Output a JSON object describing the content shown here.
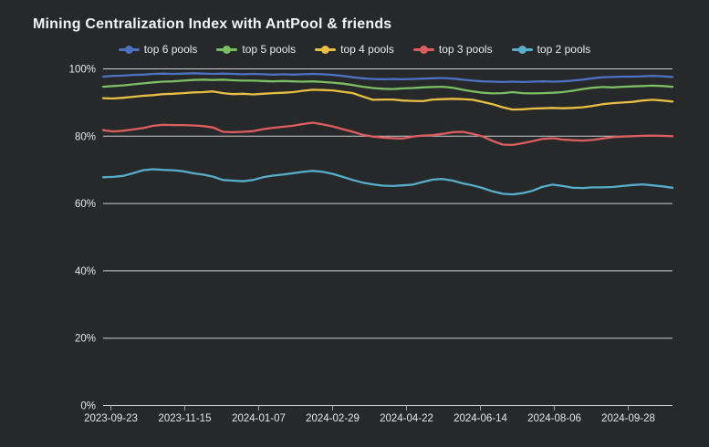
{
  "theme": {
    "background": "#26282a",
    "title_text": "#f2f3f4",
    "axis_text": "#e6e7e8",
    "gridline": "#cbced0",
    "axis_line": "#9aa0a3"
  },
  "chart_data": {
    "type": "line",
    "title": "Mining Centralization Index with AntPool & friends",
    "xlabel": "",
    "ylabel": "",
    "ylim": [
      0,
      100
    ],
    "grid": "horizontal",
    "legend_position": "top",
    "x_axis": {
      "tick_labels": [
        "2023-09-23",
        "2023-11-15",
        "2024-01-07",
        "2024-02-29",
        "2024-04-22",
        "2024-06-14",
        "2024-08-06",
        "2024-09-28"
      ]
    },
    "y_axis": {
      "ticks": [
        {
          "label": "100%",
          "value": 100
        },
        {
          "label": "80%",
          "value": 80
        },
        {
          "label": "60%",
          "value": 60
        },
        {
          "label": "40%",
          "value": 40
        },
        {
          "label": "20%",
          "value": 20
        },
        {
          "label": "0%",
          "value": 0
        }
      ]
    },
    "x": [
      "2023-09-23",
      "2023-09-30",
      "2023-10-07",
      "2023-10-14",
      "2023-10-21",
      "2023-10-28",
      "2023-11-04",
      "2023-11-11",
      "2023-11-18",
      "2023-11-25",
      "2023-12-02",
      "2023-12-09",
      "2023-12-16",
      "2023-12-23",
      "2023-12-30",
      "2024-01-06",
      "2024-01-13",
      "2024-01-20",
      "2024-01-27",
      "2024-02-03",
      "2024-02-10",
      "2024-02-17",
      "2024-02-24",
      "2024-03-02",
      "2024-03-09",
      "2024-03-16",
      "2024-03-23",
      "2024-03-30",
      "2024-04-06",
      "2024-04-13",
      "2024-04-20",
      "2024-04-27",
      "2024-05-04",
      "2024-05-11",
      "2024-05-18",
      "2024-05-25",
      "2024-06-01",
      "2024-06-08",
      "2024-06-15",
      "2024-06-22",
      "2024-06-29",
      "2024-07-06",
      "2024-07-13",
      "2024-07-20",
      "2024-07-27",
      "2024-08-03",
      "2024-08-10",
      "2024-08-17",
      "2024-08-24",
      "2024-08-31",
      "2024-09-07",
      "2024-09-14",
      "2024-09-21",
      "2024-09-28",
      "2024-10-05",
      "2024-10-12",
      "2024-10-19",
      "2024-10-26"
    ],
    "series": [
      {
        "name": "top 6 pools",
        "color": "#4d72c4",
        "values": [
          97.7,
          97.9,
          98.0,
          98.2,
          98.3,
          98.5,
          98.6,
          98.5,
          98.6,
          98.7,
          98.6,
          98.5,
          98.6,
          98.5,
          98.4,
          98.5,
          98.4,
          98.3,
          98.4,
          98.3,
          98.4,
          98.5,
          98.4,
          98.2,
          97.9,
          97.5,
          97.2,
          97.0,
          96.9,
          97.0,
          96.9,
          97.0,
          97.1,
          97.2,
          97.3,
          97.1,
          96.8,
          96.5,
          96.3,
          96.2,
          96.1,
          96.2,
          96.1,
          96.2,
          96.3,
          96.2,
          96.3,
          96.5,
          96.8,
          97.2,
          97.5,
          97.6,
          97.7,
          97.7,
          97.8,
          97.9,
          97.8,
          97.6
        ]
      },
      {
        "name": "top 5 pools",
        "color": "#7abf63",
        "values": [
          94.7,
          94.9,
          95.1,
          95.4,
          95.7,
          96.0,
          96.2,
          96.3,
          96.5,
          96.7,
          96.8,
          96.7,
          96.8,
          96.6,
          96.5,
          96.5,
          96.4,
          96.3,
          96.4,
          96.3,
          96.2,
          96.3,
          96.1,
          95.9,
          95.6,
          95.2,
          94.7,
          94.3,
          94.1,
          94.0,
          94.2,
          94.3,
          94.5,
          94.6,
          94.7,
          94.4,
          93.8,
          93.3,
          92.9,
          92.7,
          92.8,
          93.1,
          92.8,
          92.7,
          92.8,
          92.9,
          93.1,
          93.5,
          94.0,
          94.4,
          94.6,
          94.5,
          94.7,
          94.8,
          94.9,
          95.0,
          94.9,
          94.7
        ]
      },
      {
        "name": "top 4 pools",
        "color": "#eabd45",
        "values": [
          91.3,
          91.2,
          91.4,
          91.7,
          92.0,
          92.2,
          92.5,
          92.6,
          92.8,
          93.0,
          93.1,
          93.3,
          92.8,
          92.5,
          92.6,
          92.4,
          92.6,
          92.8,
          92.9,
          93.1,
          93.5,
          93.8,
          93.7,
          93.6,
          93.2,
          92.8,
          91.8,
          90.8,
          90.9,
          90.9,
          90.6,
          90.5,
          90.4,
          90.9,
          91.0,
          91.1,
          91.0,
          90.8,
          90.2,
          89.5,
          88.6,
          87.9,
          88.0,
          88.2,
          88.3,
          88.4,
          88.3,
          88.4,
          88.6,
          89.0,
          89.5,
          89.8,
          90.0,
          90.2,
          90.6,
          90.8,
          90.6,
          90.3
        ]
      },
      {
        "name": "top 3 pools",
        "color": "#dd5e5e",
        "values": [
          81.8,
          81.4,
          81.6,
          82.0,
          82.4,
          83.1,
          83.4,
          83.3,
          83.3,
          83.2,
          83.0,
          82.6,
          81.3,
          81.2,
          81.3,
          81.5,
          82.1,
          82.5,
          82.8,
          83.1,
          83.6,
          84.0,
          83.5,
          82.9,
          82.1,
          81.3,
          80.4,
          79.9,
          79.6,
          79.4,
          79.3,
          79.9,
          80.2,
          80.3,
          80.7,
          81.2,
          81.3,
          80.7,
          79.9,
          78.6,
          77.5,
          77.4,
          77.9,
          78.5,
          79.2,
          79.4,
          79.0,
          78.8,
          78.7,
          78.9,
          79.3,
          79.7,
          79.9,
          80.0,
          80.1,
          80.2,
          80.1,
          80.0
        ]
      },
      {
        "name": "top 2 pools",
        "color": "#56aecb",
        "values": [
          67.8,
          67.9,
          68.2,
          69.0,
          69.9,
          70.2,
          70.0,
          69.9,
          69.6,
          69.0,
          68.6,
          68.0,
          67.0,
          66.8,
          66.6,
          67.0,
          67.8,
          68.3,
          68.6,
          69.0,
          69.4,
          69.7,
          69.4,
          68.8,
          67.9,
          67.0,
          66.2,
          65.7,
          65.3,
          65.2,
          65.4,
          65.6,
          66.4,
          67.1,
          67.3,
          66.8,
          66.0,
          65.4,
          64.6,
          63.6,
          62.9,
          62.7,
          63.1,
          63.8,
          65.0,
          65.6,
          65.2,
          64.7,
          64.6,
          64.8,
          64.8,
          64.9,
          65.2,
          65.5,
          65.7,
          65.4,
          65.1,
          64.7
        ]
      }
    ]
  }
}
